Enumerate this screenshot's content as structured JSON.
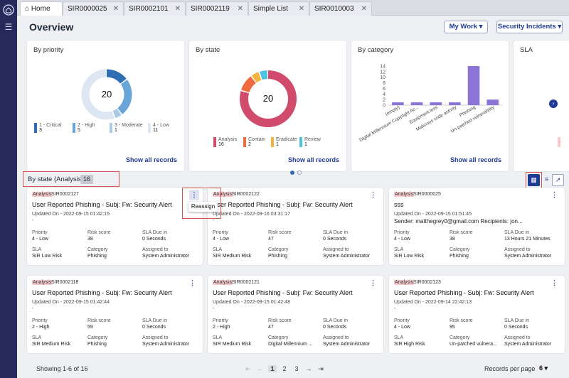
{
  "tabs": [
    {
      "label": "Home",
      "closable": false
    },
    {
      "label": "SIR0000025",
      "closable": true
    },
    {
      "label": "SIR0002101",
      "closable": true
    },
    {
      "label": "SIR0002119",
      "closable": true
    },
    {
      "label": "Simple List",
      "closable": true
    },
    {
      "label": "SIR0010003",
      "closable": true
    }
  ],
  "close_glyph": "✕",
  "page": {
    "title": "Overview",
    "my_work": "My Work ▾",
    "security_incidents": "Security Incidents ▾"
  },
  "cards": {
    "priority": {
      "title": "By priority",
      "total": "20",
      "show_all": "Show all records",
      "legend": [
        {
          "label": "1 - Critical",
          "value": "3",
          "color": "#2f6db5"
        },
        {
          "label": "2 - High",
          "value": "5",
          "color": "#6aa5d8"
        },
        {
          "label": "3 - Moderate",
          "value": "1",
          "color": "#a9cbe8"
        },
        {
          "label": "4 - Low",
          "value": "11",
          "color": "#dde6f3"
        }
      ]
    },
    "state": {
      "title": "By state",
      "total": "20",
      "show_all": "Show all records",
      "legend": [
        {
          "label": "Analysis",
          "value": "16",
          "color": "#d14b6c"
        },
        {
          "label": "Contain",
          "value": "2",
          "color": "#ef6a3f"
        },
        {
          "label": "Eradicate",
          "value": "1",
          "color": "#f3b33d"
        },
        {
          "label": "Review",
          "value": "1",
          "color": "#4fc3e0"
        }
      ]
    },
    "category": {
      "title": "By category",
      "show_all": "Show all records",
      "yticks": [
        "14",
        "12",
        "10",
        "8",
        "6",
        "4",
        "2",
        "0"
      ],
      "categories": [
        "(empty)",
        "Digital Millennium Copyright Ac...",
        "Equipment loss",
        "Malicious code activity",
        "Phishing",
        "Un-patched vulnerability"
      ]
    },
    "sla": {
      "title": "SLA"
    }
  },
  "chart_data": [
    {
      "type": "pie",
      "title": "By priority",
      "labels": [
        "1 - Critical",
        "2 - High",
        "3 - Moderate",
        "4 - Low"
      ],
      "values": [
        3,
        5,
        1,
        11
      ]
    },
    {
      "type": "pie",
      "title": "By state",
      "labels": [
        "Analysis",
        "Contain",
        "Eradicate",
        "Review"
      ],
      "values": [
        16,
        2,
        1,
        1
      ]
    },
    {
      "type": "bar",
      "title": "By category",
      "categories": [
        "(empty)",
        "Digital Millennium Copyright Ac...",
        "Equipment loss",
        "Malicious code activity",
        "Phishing",
        "Un-patched vulnerability"
      ],
      "values": [
        1,
        1,
        1,
        1,
        14,
        2
      ],
      "ylim": [
        0,
        14
      ]
    }
  ],
  "list_header": {
    "title": "By state (Analysis)",
    "count": "16"
  },
  "field_labels": {
    "priority": "Priority",
    "risk": "Risk score",
    "sla_due": "SLA Due in",
    "sla": "SLA",
    "category": "Category",
    "assigned": "Assigned to"
  },
  "records": [
    {
      "state": "Analysis",
      "number": "SIR0002127",
      "title": "User Reported Phishing - Subj: Fw: Security Alert",
      "updated": "Updated On - 2022-09-15 01:42:15",
      "desc": "-",
      "priority": "4 - Low",
      "risk": "38",
      "sla_due": "0 Seconds",
      "sla": "SIR Low Risk",
      "category": "Phishing",
      "assigned": "System Administrator"
    },
    {
      "state": "Analysis",
      "number": "SIR0002122",
      "title": "User Reported Phishing - Subj: Fw: Security Alert",
      "updated": "Updated On - 2022-09-16 03:31:17",
      "desc": "-",
      "priority": "4 - Low",
      "risk": "47",
      "sla_due": "0 Seconds",
      "sla": "SIR Medium Risk",
      "category": "Phishing",
      "assigned": "System Administrator"
    },
    {
      "state": "Analysis",
      "number": "SIR0000025",
      "title": "sss",
      "updated": "Updated On - 2022-09-15 01:51:45",
      "desc": "Sender: matthegrey0@gmail.com Recipients: jon...",
      "priority": "4 - Low",
      "risk": "38",
      "sla_due": "13 Hours 21 Minutes",
      "sla": "SIR Low Risk",
      "category": "Phishing",
      "assigned": "System Administrator"
    },
    {
      "state": "Analysis",
      "number": "SIR0002118",
      "title": "User Reported Phishing - Subj: Fw: Security Alert",
      "updated": "Updated On - 2022-09-15 01:42:44",
      "desc": "-",
      "priority": "2 - High",
      "risk": "59",
      "sla_due": "0 Seconds",
      "sla": "SIR Medium Risk",
      "category": "Phishing",
      "assigned": "System Administrator"
    },
    {
      "state": "Analysis",
      "number": "SIR0002121",
      "title": "User Reported Phishing - Subj: Fw: Security Alert",
      "updated": "Updated On - 2022-09-15 01:42:48",
      "desc": "-",
      "priority": "2 - High",
      "risk": "47",
      "sla_due": "0 Seconds",
      "sla": "SIR Medium Risk",
      "category": "Digital Millennium ...",
      "assigned": "System Administrator"
    },
    {
      "state": "Analysis",
      "number": "SIR0002123",
      "title": "User Reported Phishing - Subj: Fw: Security Alert",
      "updated": "Updated On - 2022-09-14 22:42:13",
      "desc": "-",
      "priority": "4 - Low",
      "risk": "95",
      "sla_due": "0 Seconds",
      "sla": "SIR High Risk",
      "category": "Un-patched vulnera...",
      "assigned": "System Administrator"
    }
  ],
  "popup": {
    "reassign": "Reassign"
  },
  "footer": {
    "showing": "Showing 1-6 of 16",
    "pages": [
      "1",
      "2",
      "3"
    ],
    "current_page": "1",
    "records_per_page_label": "Records per page",
    "records_per_page": "6 ▾"
  }
}
